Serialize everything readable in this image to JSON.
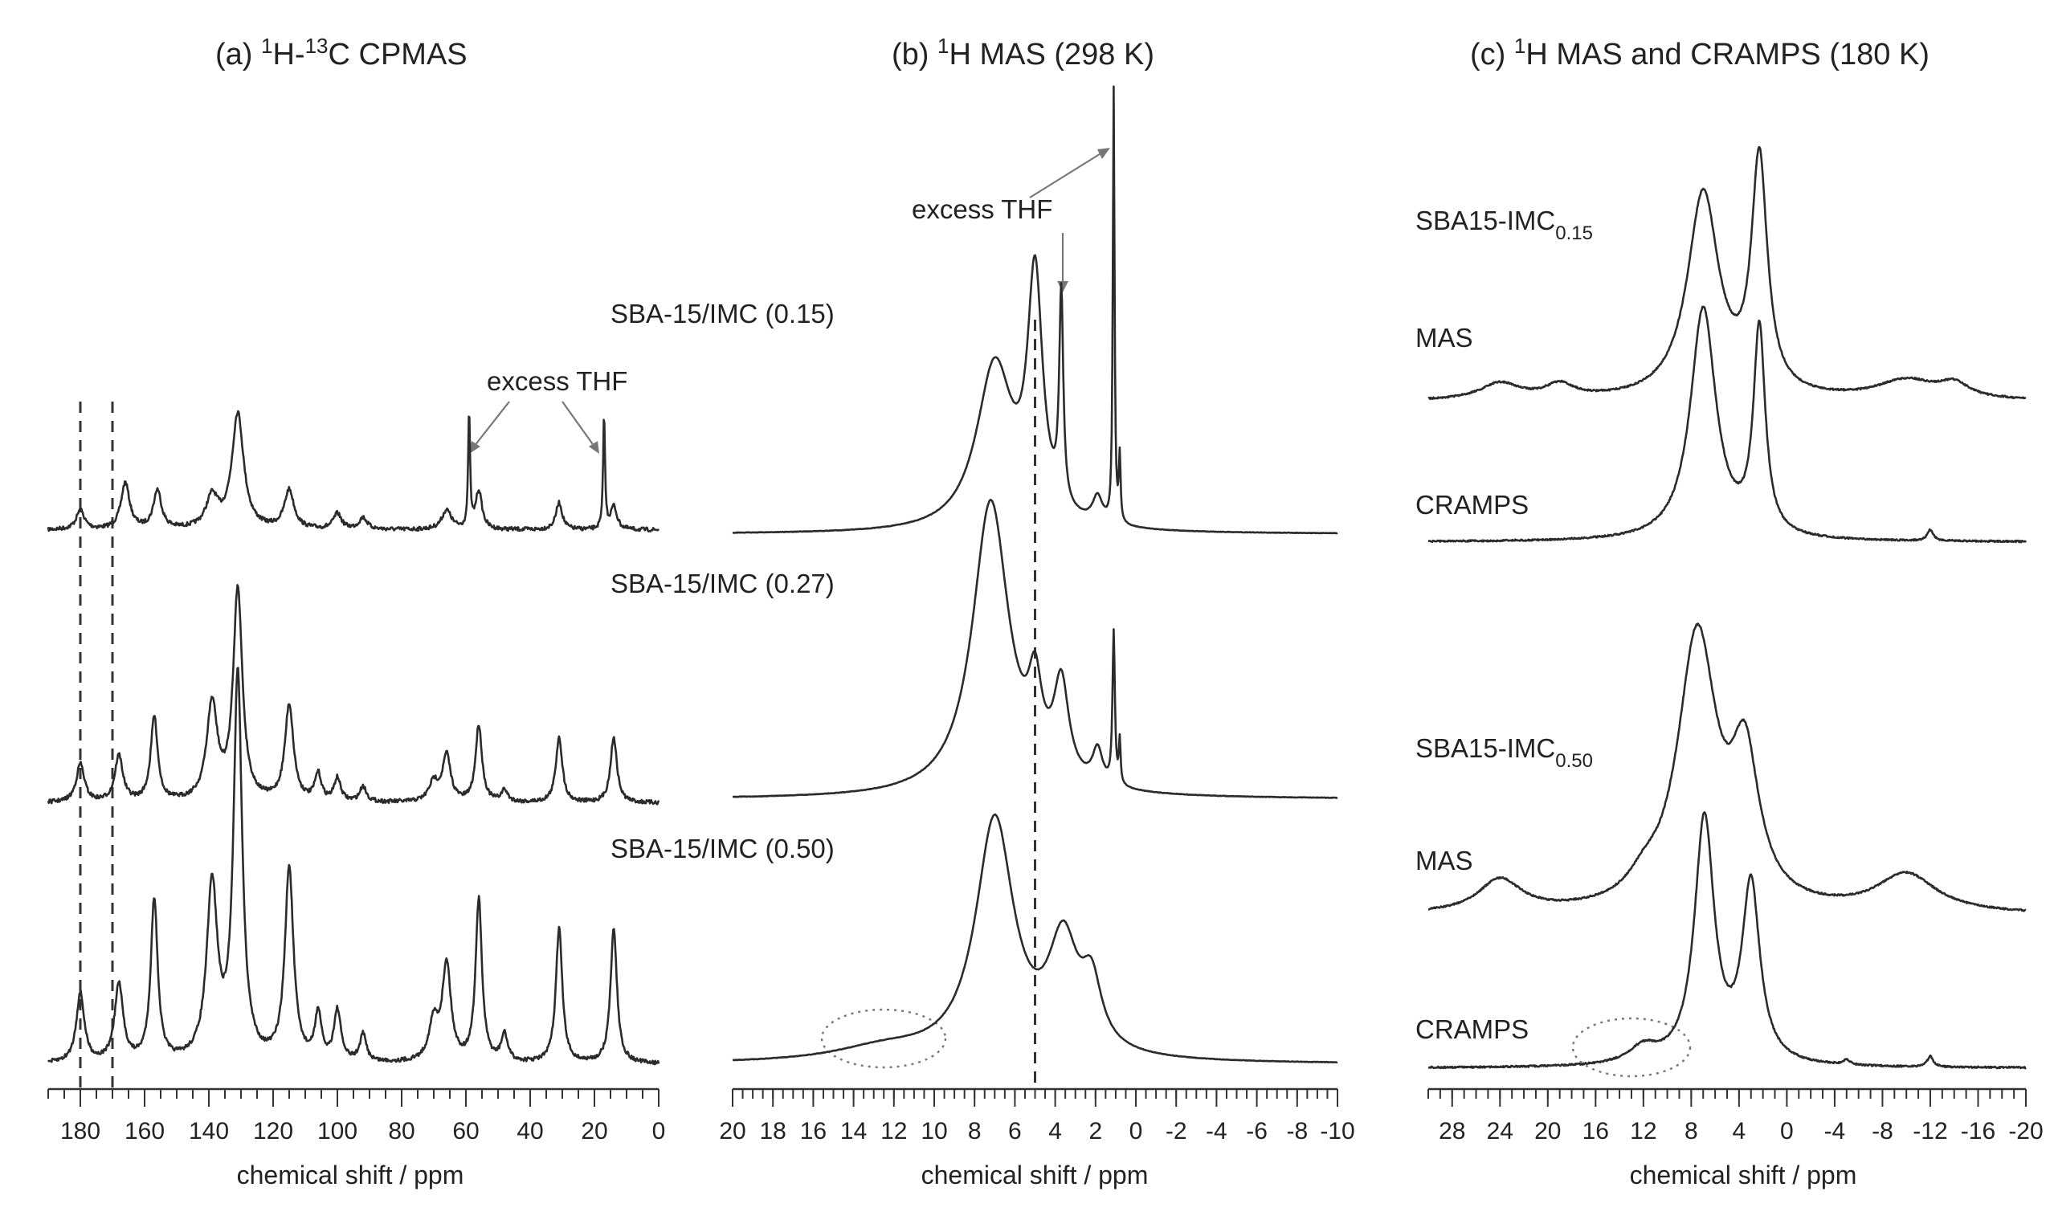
{
  "chart_data": [
    {
      "type": "line",
      "panel": "a",
      "title": {
        "prefix": "(a) ",
        "sup1": "1",
        "mid": "H-",
        "sup2": "13",
        "suffix": "C CPMAS"
      },
      "xlabel": "chemical shift / ppm",
      "xlim": [
        190,
        0
      ],
      "xticks": [
        180,
        160,
        140,
        120,
        100,
        80,
        60,
        40,
        20,
        0
      ],
      "dashed_reference_ppm": [
        180,
        170
      ],
      "series": [
        {
          "name": "SBA-15/IMC (0.15)",
          "baseline": 0.0,
          "peaks": [
            [
              180,
              0.05,
              1.5
            ],
            [
              166,
              0.12,
              1.6
            ],
            [
              156,
              0.1,
              1.5
            ],
            [
              139,
              0.08,
              2.2
            ],
            [
              131,
              0.3,
              2.2
            ],
            [
              115,
              0.1,
              1.8
            ],
            [
              100,
              0.04,
              1.5
            ],
            [
              92,
              0.03,
              1.5
            ],
            [
              66,
              0.05,
              1.8
            ],
            [
              59,
              0.3,
              0.35
            ],
            [
              56,
              0.1,
              1.2
            ],
            [
              31,
              0.07,
              1.2
            ],
            [
              17,
              0.3,
              0.35
            ],
            [
              14,
              0.06,
              1.2
            ]
          ]
        },
        {
          "name": "SBA-15/IMC (0.27)",
          "baseline": 0.0,
          "peaks": [
            [
              180,
              0.1,
              1.5
            ],
            [
              168,
              0.12,
              1.5
            ],
            [
              157,
              0.22,
              1.3
            ],
            [
              139,
              0.25,
              2.0
            ],
            [
              131,
              0.55,
              1.7
            ],
            [
              115,
              0.25,
              1.6
            ],
            [
              106,
              0.07,
              1.2
            ],
            [
              100,
              0.06,
              1.2
            ],
            [
              92,
              0.04,
              1.2
            ],
            [
              70,
              0.05,
              1.8
            ],
            [
              66,
              0.12,
              1.5
            ],
            [
              56,
              0.2,
              1.2
            ],
            [
              48,
              0.03,
              1.2
            ],
            [
              31,
              0.17,
              1.2
            ],
            [
              14,
              0.17,
              1.2
            ]
          ]
        },
        {
          "name": "SBA-15/IMC (0.50)",
          "baseline": 0.0,
          "peaks": [
            [
              180,
              0.18,
              1.5
            ],
            [
              168,
              0.2,
              1.6
            ],
            [
              157,
              0.42,
              1.3
            ],
            [
              139,
              0.45,
              2.0
            ],
            [
              131,
              1.0,
              1.6
            ],
            [
              115,
              0.5,
              1.6
            ],
            [
              106,
              0.12,
              1.2
            ],
            [
              100,
              0.13,
              1.3
            ],
            [
              92,
              0.07,
              1.2
            ],
            [
              70,
              0.1,
              1.8
            ],
            [
              66,
              0.25,
              1.6
            ],
            [
              56,
              0.42,
              1.2
            ],
            [
              48,
              0.07,
              1.2
            ],
            [
              31,
              0.35,
              1.2
            ],
            [
              14,
              0.35,
              1.2
            ]
          ]
        }
      ],
      "annotations": [
        "excess THF"
      ]
    },
    {
      "type": "line",
      "panel": "b",
      "title": {
        "prefix": "(b) ",
        "sup1": "1",
        "mid": "H MAS (298 K)",
        "sup2": "",
        "suffix": ""
      },
      "xlabel": "chemical shift / ppm",
      "xlim": [
        20,
        -10
      ],
      "xticks": [
        20,
        18,
        16,
        14,
        12,
        10,
        8,
        6,
        4,
        2,
        0,
        -2,
        -4,
        -6,
        -8,
        -10
      ],
      "dashed_reference_ppm": [
        5.0
      ],
      "series": [
        {
          "name": "SBA-15/IMC (0.15)",
          "peaks": [
            [
              7.0,
              0.38,
              1.1
            ],
            [
              5.0,
              0.55,
              0.45
            ],
            [
              3.7,
              0.48,
              0.12
            ],
            [
              1.9,
              0.06,
              0.3
            ],
            [
              1.1,
              1.0,
              0.05
            ],
            [
              0.8,
              0.15,
              0.05
            ]
          ]
        },
        {
          "name": "SBA-15/IMC (0.27)",
          "peaks": [
            [
              7.2,
              0.68,
              1.1
            ],
            [
              5.0,
              0.18,
              0.4
            ],
            [
              3.7,
              0.22,
              0.45
            ],
            [
              1.9,
              0.08,
              0.3
            ],
            [
              1.1,
              0.35,
              0.07
            ],
            [
              0.8,
              0.1,
              0.05
            ]
          ]
        },
        {
          "name": "SBA-15/IMC (0.50)",
          "peaks": [
            [
              7.0,
              0.55,
              1.15
            ],
            [
              3.6,
              0.25,
              0.9
            ],
            [
              2.2,
              0.14,
              0.6
            ],
            [
              12.5,
              0.03,
              3.0
            ]
          ]
        }
      ],
      "annotations": [
        "excess THF"
      ]
    },
    {
      "type": "line",
      "panel": "c",
      "title": {
        "prefix": "(c) ",
        "sup1": "1",
        "mid": "H MAS and CRAMPS (180 K)",
        "sup2": "",
        "suffix": ""
      },
      "xlabel": "chemical shift / ppm",
      "xlim": [
        30,
        -20
      ],
      "xticks": [
        28,
        24,
        20,
        16,
        12,
        8,
        4,
        0,
        -4,
        -8,
        -12,
        -16,
        -20
      ],
      "series": [
        {
          "name": "MAS",
          "group": "SBA15-IMC 0.15",
          "peaks": [
            [
              7.0,
              0.75,
              1.6
            ],
            [
              2.3,
              0.85,
              0.8
            ],
            [
              24,
              0.06,
              2.0
            ],
            [
              19,
              0.05,
              1.5
            ],
            [
              -10,
              0.07,
              3.0
            ],
            [
              -14,
              0.05,
              1.5
            ]
          ]
        },
        {
          "name": "CRAMPS",
          "group": "SBA15-IMC 0.15",
          "peaks": [
            [
              7.0,
              0.85,
              1.3
            ],
            [
              2.3,
              0.75,
              0.6
            ],
            [
              -12,
              0.04,
              0.3
            ]
          ]
        },
        {
          "name": "MAS",
          "group": "SBA15-IMC 0.50",
          "peaks": [
            [
              7.5,
              1.0,
              2.0
            ],
            [
              3.5,
              0.5,
              1.4
            ],
            [
              24,
              0.12,
              2.2
            ],
            [
              12,
              0.06,
              1.5
            ],
            [
              -10,
              0.14,
              3.0
            ]
          ]
        },
        {
          "name": "CRAMPS",
          "group": "SBA15-IMC 0.50",
          "peaks": [
            [
              6.9,
              0.9,
              1.0
            ],
            [
              3.0,
              0.65,
              0.9
            ],
            [
              12,
              0.06,
              1.5
            ],
            [
              -5,
              0.02,
              0.3
            ],
            [
              -12,
              0.04,
              0.3
            ]
          ]
        }
      ],
      "sample_labels": [
        {
          "main": "SBA15-IMC",
          "sub": "0.15"
        },
        {
          "main": "SBA15-IMC",
          "sub": "0.50"
        }
      ]
    }
  ],
  "labels": {
    "a_series": [
      "SBA-15/IMC (0.15)",
      "SBA-15/IMC (0.27)",
      "SBA-15/IMC (0.50)"
    ],
    "excess_thf": "excess THF",
    "mas": "MAS",
    "cramps": "CRAMPS",
    "xlabel": "chemical shift / ppm"
  }
}
